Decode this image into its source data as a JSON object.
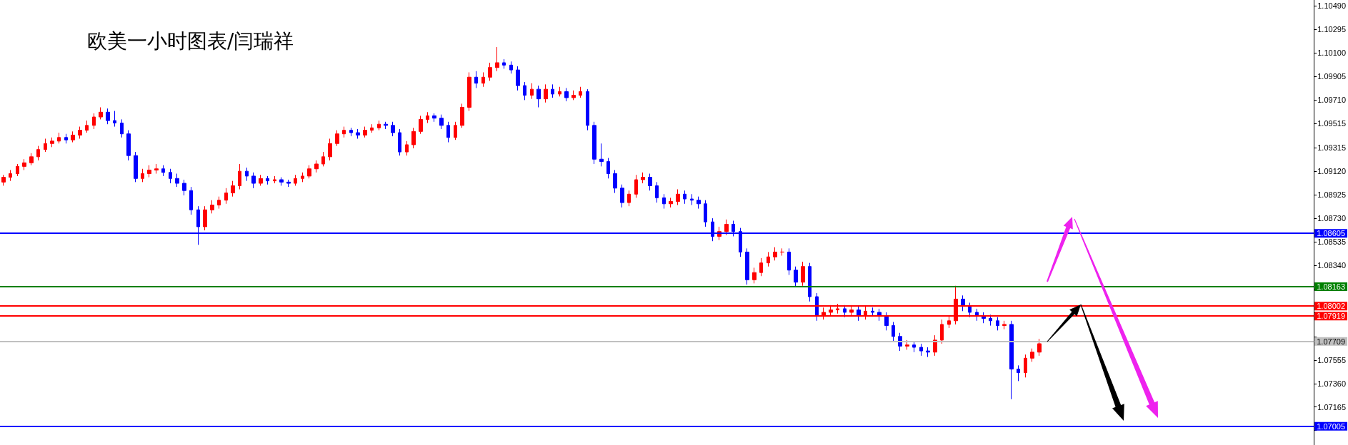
{
  "chart_data": {
    "type": "candlestick",
    "title": "欧美一小时图表/闫瑞祥",
    "categories": [
      null,
      null,
      null,
      null,
      null,
      null,
      null,
      null,
      null,
      null,
      null,
      null,
      null,
      null,
      null,
      null,
      null,
      null,
      null,
      null,
      null,
      null,
      null,
      null,
      null,
      null,
      null,
      null,
      null,
      null,
      null,
      null,
      null,
      null,
      null,
      null,
      null,
      null,
      null,
      null,
      null,
      null,
      null,
      null,
      null,
      null,
      null,
      null,
      null,
      null,
      null,
      null,
      null,
      null,
      null,
      null,
      null,
      null,
      null,
      null,
      null,
      null,
      null,
      null,
      null,
      null,
      null,
      null,
      null,
      null,
      null,
      null,
      null,
      null,
      null,
      null,
      null,
      null,
      null,
      null,
      null,
      null,
      null,
      null,
      null,
      null,
      null,
      null,
      null,
      null,
      null,
      null,
      null,
      null,
      null,
      null,
      null,
      null,
      null,
      null,
      null,
      null,
      null,
      null,
      null,
      null,
      null,
      null,
      null,
      null,
      null,
      null,
      null,
      null,
      null,
      null,
      null,
      null,
      null,
      null,
      null,
      null,
      null,
      null,
      null,
      null,
      null,
      null,
      null,
      null,
      null,
      null,
      null,
      null,
      null,
      null,
      null,
      null,
      null,
      null,
      null,
      null,
      null,
      null,
      null,
      null,
      null,
      null,
      null,
      null,
      null,
      null,
      null,
      null,
      null,
      null,
      null,
      null,
      null,
      null,
      null,
      null,
      null,
      null,
      null,
      null,
      null,
      null,
      null,
      null,
      null,
      null,
      null,
      null,
      null,
      null,
      null,
      null,
      null,
      null,
      null,
      null,
      null,
      null,
      null,
      null,
      null,
      null,
      null
    ],
    "ohlc": [
      [
        1.0903,
        1.0909,
        1.09,
        1.0907
      ],
      [
        1.0907,
        1.0913,
        1.0904,
        1.091
      ],
      [
        1.091,
        1.0918,
        1.0908,
        1.0916
      ],
      [
        1.0916,
        1.0922,
        1.0913,
        1.0919
      ],
      [
        1.0919,
        1.0927,
        1.0917,
        1.0924
      ],
      [
        1.0924,
        1.0933,
        1.0921,
        1.093
      ],
      [
        1.093,
        1.0939,
        1.0928,
        1.0935
      ],
      [
        1.0935,
        1.094,
        1.0932,
        1.0937
      ],
      [
        1.0937,
        1.0944,
        1.0935,
        1.094
      ],
      [
        1.094,
        1.0943,
        1.0935,
        1.0938
      ],
      [
        1.0938,
        1.0945,
        1.0936,
        1.0942
      ],
      [
        1.0942,
        1.0949,
        1.0939,
        1.0946
      ],
      [
        1.0946,
        1.0954,
        1.0944,
        1.095
      ],
      [
        1.095,
        1.096,
        1.0947,
        1.0957
      ],
      [
        1.0957,
        1.0965,
        1.0955,
        1.0961
      ],
      [
        1.0961,
        1.0964,
        1.0951,
        1.0954
      ],
      [
        1.0954,
        1.0962,
        1.0949,
        1.0952
      ],
      [
        1.0952,
        1.0955,
        1.094,
        1.0943
      ],
      [
        1.0943,
        1.0946,
        1.0921,
        1.0925
      ],
      [
        1.0925,
        1.0928,
        1.0903,
        1.0906
      ],
      [
        1.0906,
        1.0914,
        1.0903,
        1.091
      ],
      [
        1.091,
        1.0917,
        1.0907,
        1.0913
      ],
      [
        1.0913,
        1.0918,
        1.091,
        1.0914
      ],
      [
        1.0914,
        1.0917,
        1.0908,
        1.0911
      ],
      [
        1.0911,
        1.0914,
        1.0902,
        1.0906
      ],
      [
        1.0906,
        1.091,
        1.0899,
        1.0902
      ],
      [
        1.0902,
        1.0905,
        1.0892,
        1.0896
      ],
      [
        1.0896,
        1.0899,
        1.0876,
        1.088
      ],
      [
        1.088,
        1.0883,
        1.0851,
        1.0866
      ],
      [
        1.0866,
        1.0883,
        1.0863,
        1.088
      ],
      [
        1.088,
        1.0888,
        1.0877,
        1.0884
      ],
      [
        1.0884,
        1.0891,
        1.0881,
        1.0888
      ],
      [
        1.0888,
        1.0898,
        1.0885,
        1.0894
      ],
      [
        1.0894,
        1.0904,
        1.0891,
        1.09
      ],
      [
        1.09,
        1.0918,
        1.0897,
        1.0912
      ],
      [
        1.0912,
        1.0915,
        1.0904,
        1.0908
      ],
      [
        1.0908,
        1.0911,
        1.0898,
        1.0902
      ],
      [
        1.0902,
        1.0909,
        1.09,
        1.0906
      ],
      [
        1.0906,
        1.0908,
        1.0901,
        1.0904
      ],
      [
        1.0904,
        1.0908,
        1.0902,
        1.0905
      ],
      [
        1.0905,
        1.0907,
        1.09,
        1.0903
      ],
      [
        1.0903,
        1.0905,
        1.0899,
        1.0902
      ],
      [
        1.0902,
        1.0909,
        1.09,
        1.0906
      ],
      [
        1.0906,
        1.0911,
        1.0903,
        1.0908
      ],
      [
        1.0908,
        1.0917,
        1.0906,
        1.0914
      ],
      [
        1.0914,
        1.0921,
        1.0911,
        1.0918
      ],
      [
        1.0918,
        1.0928,
        1.0916,
        1.0924
      ],
      [
        1.0924,
        1.0939,
        1.0921,
        1.0935
      ],
      [
        1.0935,
        1.0946,
        1.0933,
        1.0943
      ],
      [
        1.0943,
        1.0949,
        1.094,
        1.0946
      ],
      [
        1.0946,
        1.0948,
        1.0941,
        1.0944
      ],
      [
        1.0944,
        1.0947,
        1.0939,
        1.0942
      ],
      [
        1.0942,
        1.0949,
        1.094,
        1.0946
      ],
      [
        1.0946,
        1.0951,
        1.0944,
        1.0948
      ],
      [
        1.0948,
        1.0954,
        1.0946,
        1.0951
      ],
      [
        1.0951,
        1.0953,
        1.0947,
        1.095
      ],
      [
        1.095,
        1.0953,
        1.0941,
        1.0944
      ],
      [
        1.0944,
        1.0947,
        1.0925,
        1.0928
      ],
      [
        1.0928,
        1.0937,
        1.0925,
        1.0934
      ],
      [
        1.0934,
        1.0948,
        1.0931,
        1.0945
      ],
      [
        1.0945,
        1.0958,
        1.0943,
        1.0955
      ],
      [
        1.0955,
        1.0961,
        1.0952,
        1.0958
      ],
      [
        1.0958,
        1.096,
        1.0953,
        1.0956
      ],
      [
        1.0956,
        1.0959,
        1.0947,
        1.095
      ],
      [
        1.095,
        1.0953,
        1.0936,
        1.094
      ],
      [
        1.094,
        1.0953,
        1.0938,
        1.095
      ],
      [
        1.095,
        1.0968,
        1.0948,
        1.0965
      ],
      [
        1.0965,
        1.0994,
        1.0962,
        1.099
      ],
      [
        1.099,
        1.0995,
        1.0981,
        1.0985
      ],
      [
        1.0985,
        1.0994,
        1.0982,
        1.099
      ],
      [
        1.099,
        1.1002,
        1.0987,
        1.0998
      ],
      [
        1.0998,
        1.1015,
        1.0995,
        1.1002
      ],
      [
        1.1002,
        1.1005,
        1.0997,
        1.1
      ],
      [
        1.1,
        1.1003,
        1.0993,
        1.0996
      ],
      [
        1.0996,
        1.0999,
        1.0979,
        1.0983
      ],
      [
        1.0983,
        1.0986,
        1.0971,
        1.0975
      ],
      [
        1.0975,
        1.0985,
        1.0972,
        1.098
      ],
      [
        1.098,
        1.0983,
        1.0965,
        1.0972
      ],
      [
        1.0972,
        1.0984,
        1.0969,
        1.098
      ],
      [
        1.098,
        1.0984,
        1.0973,
        1.0976
      ],
      [
        1.0976,
        1.0982,
        1.0974,
        1.0978
      ],
      [
        1.0978,
        1.0981,
        1.097,
        1.0973
      ],
      [
        1.0973,
        1.0979,
        1.0971,
        1.0975
      ],
      [
        1.0975,
        1.0982,
        1.0973,
        1.0978
      ],
      [
        1.0978,
        1.098,
        1.0946,
        1.095
      ],
      [
        1.095,
        1.0953,
        1.0918,
        1.0922
      ],
      [
        1.0922,
        1.0935,
        1.0916,
        1.092
      ],
      [
        1.092,
        1.0923,
        1.0906,
        1.091
      ],
      [
        1.091,
        1.0913,
        1.0894,
        1.0898
      ],
      [
        1.0898,
        1.0901,
        1.0882,
        1.0886
      ],
      [
        1.0886,
        1.0896,
        1.0883,
        1.0893
      ],
      [
        1.0893,
        1.0909,
        1.089,
        1.0905
      ],
      [
        1.0905,
        1.0911,
        1.0902,
        1.0907
      ],
      [
        1.0907,
        1.091,
        1.0896,
        1.09
      ],
      [
        1.09,
        1.0903,
        1.0886,
        1.089
      ],
      [
        1.089,
        1.0893,
        1.0881,
        1.0885
      ],
      [
        1.0885,
        1.089,
        1.0882,
        1.0887
      ],
      [
        1.0887,
        1.0897,
        1.0884,
        1.0893
      ],
      [
        1.0893,
        1.0896,
        1.0885,
        1.0889
      ],
      [
        1.0889,
        1.0893,
        1.0884,
        1.0888
      ],
      [
        1.0888,
        1.0891,
        1.0881,
        1.0885
      ],
      [
        1.0885,
        1.0888,
        1.0866,
        1.087
      ],
      [
        1.087,
        1.0873,
        1.0854,
        1.0858
      ],
      [
        1.0858,
        1.0866,
        1.0855,
        1.0862
      ],
      [
        1.0862,
        1.0872,
        1.0859,
        1.0868
      ],
      [
        1.0868,
        1.0871,
        1.0858,
        1.0862
      ],
      [
        1.0862,
        1.0865,
        1.0841,
        1.0845
      ],
      [
        1.0845,
        1.0848,
        1.0818,
        1.0822
      ],
      [
        1.0822,
        1.0832,
        1.0819,
        1.0828
      ],
      [
        1.0828,
        1.084,
        1.0825,
        1.0836
      ],
      [
        1.0836,
        1.0845,
        1.0833,
        1.0841
      ],
      [
        1.0841,
        1.0849,
        1.0838,
        1.0845
      ],
      [
        1.0845,
        1.0848,
        1.0842,
        1.0845
      ],
      [
        1.0845,
        1.0848,
        1.0826,
        1.083
      ],
      [
        1.083,
        1.0833,
        1.0816,
        1.082
      ],
      [
        1.082,
        1.0837,
        1.0817,
        1.0833
      ],
      [
        1.0833,
        1.0836,
        1.0804,
        1.0808
      ],
      [
        1.0808,
        1.0811,
        1.0788,
        1.0792
      ],
      [
        1.0792,
        1.0799,
        1.0789,
        1.0795
      ],
      [
        1.0795,
        1.0801,
        1.0792,
        1.0797
      ],
      [
        1.0797,
        1.0802,
        1.0794,
        1.0798
      ],
      [
        1.0798,
        1.0801,
        1.0791,
        1.0795
      ],
      [
        1.0795,
        1.0801,
        1.0792,
        1.0797
      ],
      [
        1.0797,
        1.08,
        1.0788,
        1.0792
      ],
      [
        1.0792,
        1.08,
        1.0789,
        1.0796
      ],
      [
        1.0796,
        1.0799,
        1.0792,
        1.0795
      ],
      [
        1.0795,
        1.0798,
        1.0788,
        1.0792
      ],
      [
        1.0792,
        1.0795,
        1.078,
        1.0784
      ],
      [
        1.0784,
        1.0787,
        1.0771,
        1.0775
      ],
      [
        1.0775,
        1.0778,
        1.0763,
        1.0767
      ],
      [
        1.0767,
        1.0772,
        1.0764,
        1.0768
      ],
      [
        1.0768,
        1.0771,
        1.0762,
        1.0766
      ],
      [
        1.0766,
        1.0769,
        1.0759,
        1.0763
      ],
      [
        1.0763,
        1.0766,
        1.0758,
        1.0762
      ],
      [
        1.0762,
        1.0776,
        1.0759,
        1.0772
      ],
      [
        1.0772,
        1.0789,
        1.0769,
        1.0785
      ],
      [
        1.0785,
        1.0792,
        1.0782,
        1.0788
      ],
      [
        1.0788,
        1.0817,
        1.0785,
        1.0806
      ],
      [
        1.0806,
        1.0809,
        1.0796,
        1.08
      ],
      [
        1.08,
        1.0803,
        1.0791,
        1.0795
      ],
      [
        1.0795,
        1.0798,
        1.0788,
        1.0792
      ],
      [
        1.0792,
        1.0795,
        1.0786,
        1.079
      ],
      [
        1.079,
        1.0793,
        1.0784,
        1.0788
      ],
      [
        1.0788,
        1.0791,
        1.078,
        1.0784
      ],
      [
        1.0784,
        1.0788,
        1.0781,
        1.0785
      ],
      [
        1.0785,
        1.0788,
        1.0723,
        1.0748
      ],
      [
        1.0748,
        1.0751,
        1.0738,
        1.0745
      ],
      [
        1.0745,
        1.076,
        1.0741,
        1.0757
      ],
      [
        1.0757,
        1.0765,
        1.0754,
        1.0762
      ],
      [
        1.0762,
        1.0773,
        1.0759,
        1.0769
      ],
      null,
      null,
      null,
      null,
      null,
      null,
      null,
      null,
      null,
      null,
      null,
      null,
      null,
      null,
      null,
      null,
      null,
      null,
      null,
      null,
      null,
      null,
      null,
      null,
      null,
      null,
      null,
      null,
      null,
      null,
      null,
      null,
      null,
      null,
      null,
      null,
      null,
      null,
      null
    ],
    "ylim": [
      1.0685,
      1.1054
    ],
    "yticks": [
      {
        "value": 1.0697,
        "label": null
      },
      {
        "value": 1.07165,
        "label": "1.07165"
      },
      {
        "value": 1.0736,
        "label": "1.07360"
      },
      {
        "value": 1.07555,
        "label": "1.07555"
      },
      {
        "value": 1.0775,
        "label": null
      },
      {
        "value": 1.0795,
        "label": null
      },
      {
        "value": 1.08145,
        "label": null
      },
      {
        "value": 1.0834,
        "label": "1.08340"
      },
      {
        "value": 1.08535,
        "label": "1.08535"
      },
      {
        "value": 1.0873,
        "label": "1.08730"
      },
      {
        "value": 1.08925,
        "label": "1.08925"
      },
      {
        "value": 1.0912,
        "label": "1.09120"
      },
      {
        "value": 1.09315,
        "label": "1.09315"
      },
      {
        "value": 1.09515,
        "label": "1.09515"
      },
      {
        "value": 1.0971,
        "label": "1.09710"
      },
      {
        "value": 1.09905,
        "label": "1.09905"
      },
      {
        "value": 1.101,
        "label": "1.10100"
      },
      {
        "value": 1.10295,
        "label": "1.10295"
      },
      {
        "value": 1.1049,
        "label": "1.10490"
      }
    ],
    "ref_lines": [
      {
        "axis": "y",
        "value": 1.08605,
        "label": "1.08605",
        "color": "#0000ff"
      },
      {
        "axis": "y",
        "value": 1.08163,
        "label": "1.08163",
        "color": "#008000"
      },
      {
        "axis": "y",
        "value": 1.08002,
        "label": "1.08002",
        "color": "#ff0000"
      },
      {
        "axis": "y",
        "value": 1.07919,
        "label": "1.07919",
        "color": "#ff0000"
      },
      {
        "axis": "y",
        "value": 1.07709,
        "label": "1.07709",
        "color": "#c0c0c0"
      },
      {
        "axis": "y",
        "value": 1.07005,
        "label": "1.07005",
        "color": "#0000ff"
      }
    ],
    "tick_labels": "y"
  }
}
